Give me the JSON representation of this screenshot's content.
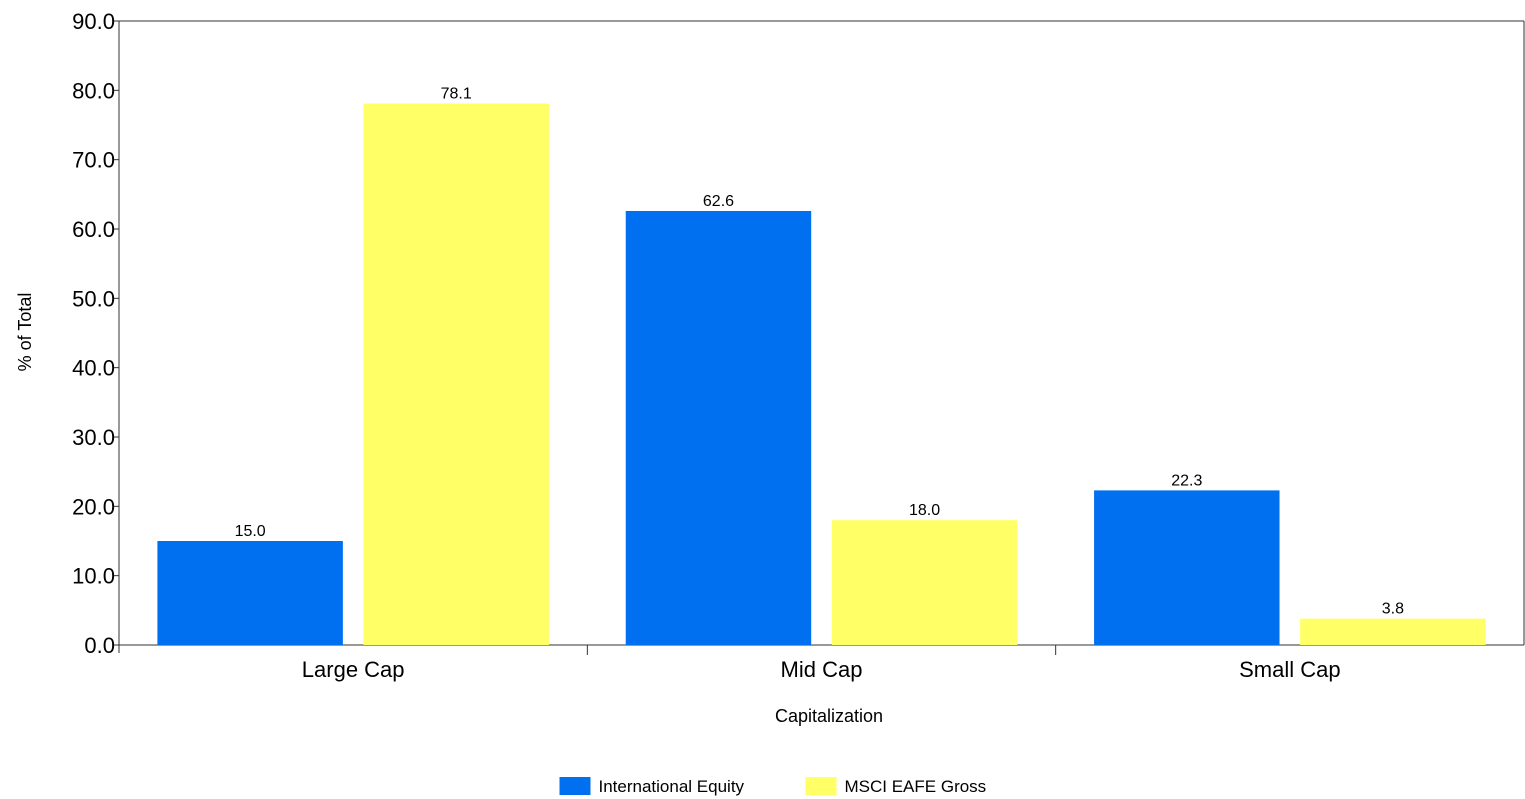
{
  "chart_data": {
    "type": "bar",
    "categories": [
      "Large Cap",
      "Mid Cap",
      "Small Cap"
    ],
    "series": [
      {
        "name": "International Equity",
        "values": [
          15.0,
          62.6,
          22.3
        ],
        "color": "#0070f0"
      },
      {
        "name": "MSCI EAFE Gross",
        "values": [
          78.1,
          18.0,
          3.8
        ],
        "color": "#ffff66"
      }
    ],
    "data_labels": [
      [
        "15.0",
        "62.6",
        "22.3"
      ],
      [
        "78.1",
        "18.0",
        "3.8"
      ]
    ],
    "xlabel": "Capitalization",
    "ylabel": "% of Total",
    "ylim": [
      0,
      90
    ],
    "yticks": [
      "0.0",
      "10.0",
      "20.0",
      "30.0",
      "40.0",
      "50.0",
      "60.0",
      "70.0",
      "80.0",
      "90.0"
    ],
    "grid": false,
    "legend_position": "bottom-center"
  }
}
